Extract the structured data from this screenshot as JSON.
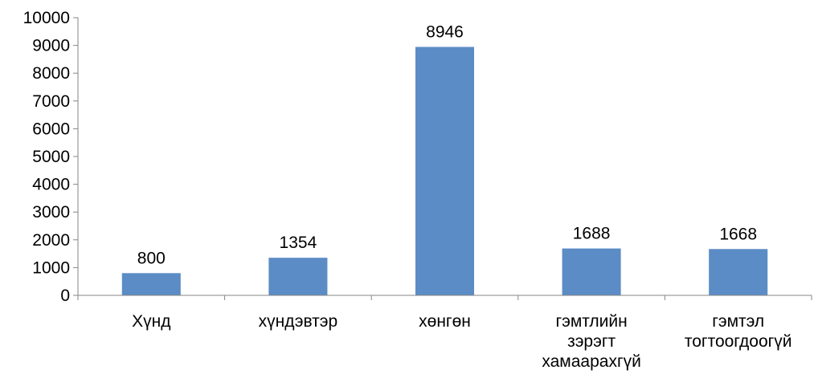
{
  "chart_data": {
    "type": "bar",
    "categories": [
      [
        "Хүнд"
      ],
      [
        "хүндэвтэр"
      ],
      [
        "хөнгөн"
      ],
      [
        "гэмтлийн",
        "зэрэгт",
        "хамаарахгүй"
      ],
      [
        "гэмтэл",
        "тогтоогдоогүй"
      ]
    ],
    "values": [
      800,
      1354,
      8946,
      1688,
      1668
    ],
    "ylim": [
      0,
      10000
    ],
    "yticks": [
      0,
      1000,
      2000,
      3000,
      4000,
      5000,
      6000,
      7000,
      8000,
      9000,
      10000
    ],
    "grid": false,
    "legend": "none",
    "data_labels": true,
    "bar_color": "#5B8CC5",
    "axis_color": "#868686"
  }
}
